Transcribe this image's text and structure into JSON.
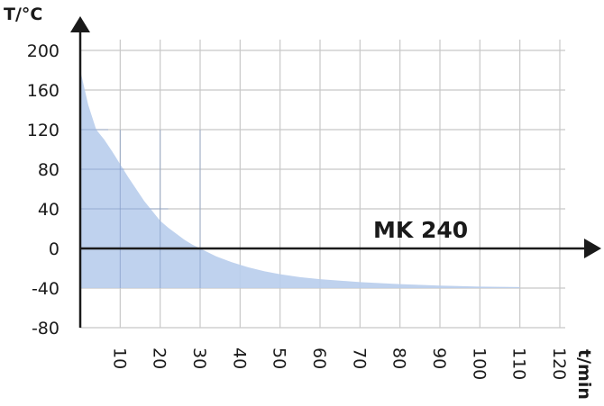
{
  "chart_data": {
    "type": "area",
    "title": "",
    "xlabel": "t/min",
    "ylabel": "T/°C",
    "xlim": [
      0,
      120
    ],
    "ylim": [
      -80,
      200
    ],
    "x_ticks": [
      "10",
      "20",
      "30",
      "40",
      "50",
      "60",
      "70",
      "80",
      "90",
      "100",
      "110",
      "120"
    ],
    "y_ticks": [
      "200",
      "160",
      "120",
      "80",
      "40",
      "0",
      "-40",
      "-80"
    ],
    "grid": true,
    "series": [
      {
        "name": "MK 240",
        "color": "#b8cdec",
        "x": [
          0,
          2,
          4,
          6,
          8,
          10,
          12,
          14,
          16,
          18,
          20,
          22,
          24,
          26,
          28,
          30,
          34,
          38,
          42,
          46,
          50,
          55,
          60,
          70,
          80,
          90,
          100,
          110
        ],
        "y": [
          180,
          145,
          120,
          110,
          98,
          85,
          72,
          60,
          48,
          38,
          28,
          21,
          15,
          9,
          4,
          0,
          -8,
          -14,
          -19,
          -23,
          -26,
          -29,
          -31,
          -34,
          -36,
          -37.5,
          -38.5,
          -39
        ]
      }
    ]
  },
  "colors": {
    "grid": "#c8c8c8",
    "axis": "#1a1a1a",
    "fill": "#b8cdec"
  }
}
